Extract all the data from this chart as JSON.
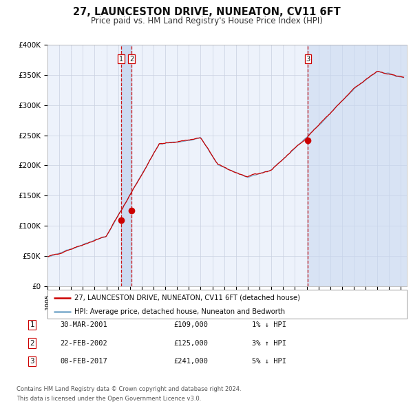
{
  "title": "27, LAUNCESTON DRIVE, NUNEATON, CV11 6FT",
  "subtitle": "Price paid vs. HM Land Registry's House Price Index (HPI)",
  "legend_line1": "27, LAUNCESTON DRIVE, NUNEATON, CV11 6FT (detached house)",
  "legend_line2": "HPI: Average price, detached house, Nuneaton and Bedworth",
  "footer1": "Contains HM Land Registry data © Crown copyright and database right 2024.",
  "footer2": "This data is licensed under the Open Government Licence v3.0.",
  "sale_color": "#cc0000",
  "hpi_color": "#7aabcc",
  "background_color": "#ffffff",
  "plot_bg_color": "#edf2fb",
  "grid_color": "#c8d0e0",
  "highlight_bg": "#c8d8f0",
  "ylim": [
    0,
    400000
  ],
  "yticks": [
    0,
    50000,
    100000,
    150000,
    200000,
    250000,
    300000,
    350000,
    400000
  ],
  "ytick_labels": [
    "£0",
    "£50K",
    "£100K",
    "£150K",
    "£200K",
    "£250K",
    "£300K",
    "£350K",
    "£400K"
  ],
  "sales": [
    {
      "date_num": 2001.247,
      "price": 109000,
      "label": "1"
    },
    {
      "date_num": 2002.128,
      "price": 125000,
      "label": "2"
    },
    {
      "date_num": 2017.105,
      "price": 241000,
      "label": "3"
    }
  ],
  "table_rows": [
    {
      "num": "1",
      "date": "30-MAR-2001",
      "price": "£109,000",
      "hpi": "1% ↓ HPI"
    },
    {
      "num": "2",
      "date": "22-FEB-2002",
      "price": "£125,000",
      "hpi": "3% ↑ HPI"
    },
    {
      "num": "3",
      "date": "08-FEB-2017",
      "price": "£241,000",
      "hpi": "5% ↓ HPI"
    }
  ],
  "xmin": 1995.0,
  "xmax": 2025.5
}
